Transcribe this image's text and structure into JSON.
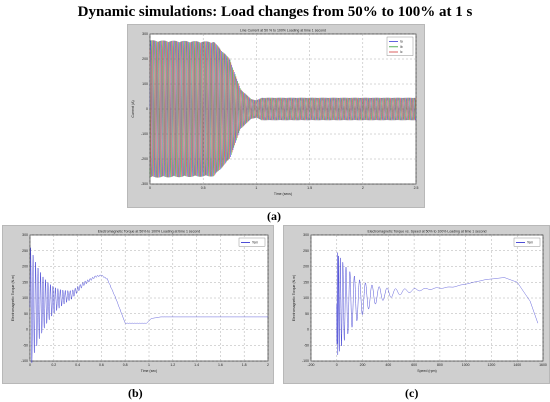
{
  "figure": {
    "title": "Dynamic simulations: Load changes from 50% to 100% at 1 s",
    "captions": [
      "(a)",
      "(b)",
      "(c)"
    ]
  },
  "chart_data": [
    {
      "type": "line",
      "title": "Line Current at 50 % to 100% Loading at time 1 second",
      "xlabel": "Time (secs)",
      "ylabel": "Current (A)",
      "xlim": [
        0,
        2.5
      ],
      "ylim": [
        -300,
        300
      ],
      "xticks": [
        "0",
        "0.5",
        "1",
        "1.5",
        "2",
        "2.5"
      ],
      "yticks": [
        "-300",
        "-200",
        "-100",
        "0",
        "100",
        "200",
        "300"
      ],
      "legend": [
        "Ia",
        "Ib",
        "Ic"
      ],
      "legend_position": "top-right",
      "grid": true,
      "series": [
        {
          "name": "Ia",
          "color": "#3a3ad6"
        },
        {
          "name": "Ib",
          "color": "#2e9b2e"
        },
        {
          "name": "Ic",
          "color": "#d23a3a"
        }
      ],
      "envelope": {
        "t": [
          0,
          0.6,
          0.75,
          0.85,
          0.95,
          1.0,
          1.05,
          2.5
        ],
        "amplitude": [
          275,
          270,
          200,
          80,
          40,
          35,
          45,
          45
        ]
      }
    },
    {
      "type": "line",
      "title": "Electromagnetic Torque at 50% to 100% Loading at time 1 second",
      "xlabel": "Time (sec)",
      "ylabel": "Electromagnetic Torque (N.m)",
      "xlim": [
        0,
        2
      ],
      "ylim": [
        -100,
        300
      ],
      "xticks": [
        "0",
        "0.2",
        "0.4",
        "0.6",
        "0.8",
        "1",
        "1.2",
        "1.4",
        "1.6",
        "1.8",
        "2"
      ],
      "yticks": [
        "-100",
        "-50",
        "0",
        "50",
        "100",
        "150",
        "200",
        "250",
        "300"
      ],
      "legend": [
        "Tem"
      ],
      "legend_position": "top-right",
      "grid": true,
      "series": [
        {
          "name": "Tem",
          "color": "#2222cc"
        }
      ],
      "mean": {
        "t": [
          0,
          0.35,
          0.45,
          0.55,
          0.6,
          0.65,
          0.72,
          0.8,
          0.98,
          1.02,
          1.1,
          2.0
        ],
        "value": [
          70,
          110,
          145,
          168,
          172,
          160,
          100,
          20,
          20,
          35,
          40,
          40
        ]
      }
    },
    {
      "type": "line",
      "title": "Electromagnetic Torque vs. Speed at 50% to 100% Loading at time 1 second",
      "xlabel": "Speed (rpm)",
      "ylabel": "Electromagnetic Torque (N.m)",
      "xlim": [
        -200,
        1600
      ],
      "ylim": [
        -100,
        300
      ],
      "xticks": [
        "-200",
        "0",
        "200",
        "400",
        "600",
        "800",
        "1000",
        "1200",
        "1400",
        "1600"
      ],
      "yticks": [
        "-100",
        "-50",
        "0",
        "50",
        "100",
        "150",
        "200",
        "250",
        "300"
      ],
      "legend": [
        "Tem"
      ],
      "legend_position": "top-right",
      "grid": true,
      "series": [
        {
          "name": "Tem",
          "color": "#2222cc"
        }
      ],
      "mean": {
        "speed": [
          0,
          300,
          600,
          900,
          1150,
          1300,
          1400,
          1500,
          1560
        ],
        "value": [
          80,
          110,
          125,
          135,
          158,
          165,
          150,
          90,
          20
        ]
      }
    }
  ]
}
